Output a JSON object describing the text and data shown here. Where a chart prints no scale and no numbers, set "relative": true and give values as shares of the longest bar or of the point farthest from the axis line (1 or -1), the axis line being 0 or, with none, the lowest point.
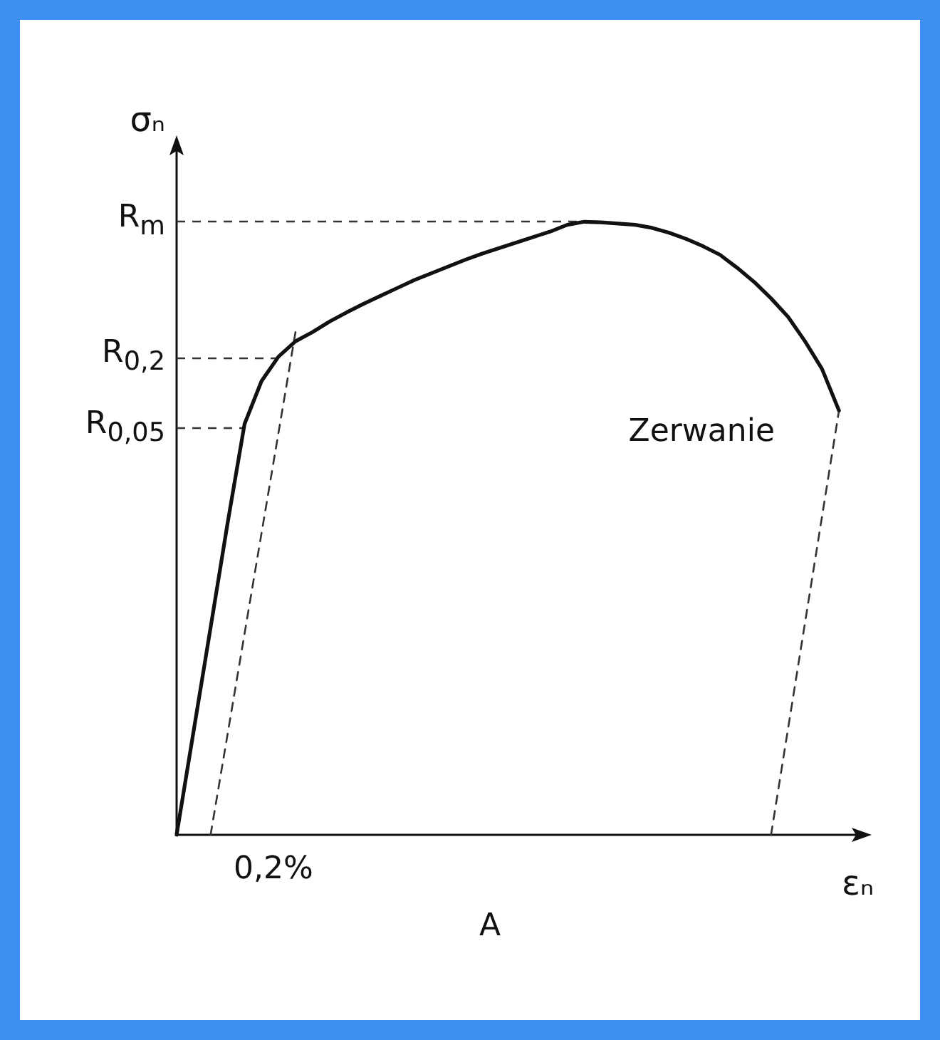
{
  "chart_data": {
    "type": "line",
    "relative": true,
    "xlabel": "εₙ",
    "ylabel": "σₙ",
    "marker": "none",
    "grid": false,
    "categories": [
      null,
      null,
      null,
      null,
      null,
      null,
      null,
      null,
      null,
      null,
      null,
      null,
      null,
      null,
      null,
      null,
      null,
      null,
      null,
      null,
      null,
      null,
      null,
      null,
      null,
      null,
      null,
      null,
      null,
      null,
      null,
      null,
      null,
      null,
      null,
      null,
      null,
      null,
      null,
      null,
      null
    ],
    "series": [
      {
        "color": "#111111",
        "line_style": "solid",
        "values": [
          0,
          0.169,
          0.338,
          0.508,
          0.67,
          0.74,
          0.78,
          0.805,
          0.82,
          0.837,
          0.852,
          0.866,
          0.879,
          0.892,
          0.905,
          0.916,
          0.927,
          0.938,
          0.948,
          0.957,
          0.966,
          0.975,
          0.984,
          0.995,
          1,
          0.999,
          0.997,
          0.995,
          0.99,
          0.982,
          0.972,
          0.96,
          0.946,
          0.925,
          0.902,
          0.875,
          0.845,
          0.805,
          0.76,
          0.692,
          null
        ]
      },
      {
        "color": "#333333",
        "line_style": "dashed",
        "values": [
          null,
          null,
          0,
          null,
          null,
          null,
          null,
          0.82,
          null,
          null,
          null,
          null,
          null,
          null,
          null,
          null,
          null,
          null,
          null,
          null,
          null,
          null,
          null,
          null,
          null,
          null,
          null,
          null,
          null,
          null,
          null,
          null,
          null,
          null,
          null,
          null,
          null,
          null,
          null,
          null,
          null
        ]
      },
      {
        "color": "#333333",
        "line_style": "dashed",
        "values": [
          null,
          null,
          null,
          null,
          null,
          null,
          null,
          null,
          null,
          null,
          null,
          null,
          null,
          null,
          null,
          null,
          null,
          null,
          null,
          null,
          null,
          null,
          null,
          null,
          null,
          null,
          null,
          null,
          null,
          null,
          null,
          null,
          null,
          null,
          null,
          0,
          null,
          null,
          null,
          0.692,
          null
        ]
      }
    ],
    "ref_lines": [
      {
        "axis": "y",
        "value": 1,
        "label": "R$_{m}$",
        "line_style": "dashed"
      },
      {
        "axis": "y",
        "value": 0.778,
        "label": "R$_{0,2}$",
        "line_style": "dashed"
      },
      {
        "axis": "y",
        "value": 0.663,
        "label": "R$_{0,05}$",
        "line_style": "dashed"
      }
    ],
    "annotations": [
      "Zerwanie",
      "0,2%",
      "A"
    ]
  }
}
